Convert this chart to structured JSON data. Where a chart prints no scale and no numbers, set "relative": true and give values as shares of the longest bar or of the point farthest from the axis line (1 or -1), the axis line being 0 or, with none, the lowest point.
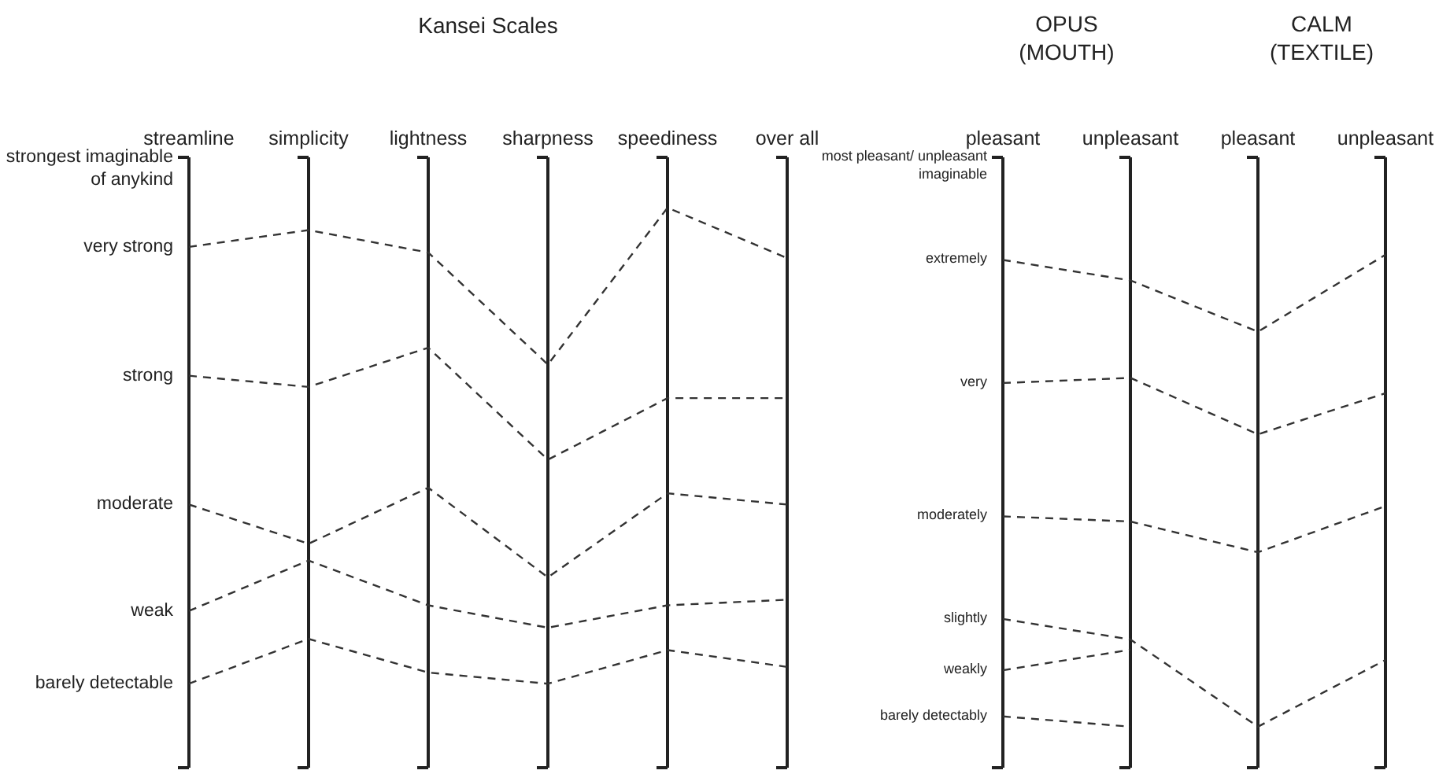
{
  "chart_data": [
    {
      "type": "line",
      "title": "Kansei Scales",
      "categories": [
        "streamline",
        "simplicity",
        "lightness",
        "sharpness",
        "speediness",
        "over all"
      ],
      "relative": true,
      "grid": "x",
      "annotations": [
        "strongest imaginable of anykind",
        "very strong",
        "strong",
        "moderate",
        "weak",
        "barely detectable"
      ],
      "line_style": "dashed",
      "series": [
        {
          "color": "#333333",
          "values": [
            0.93,
            0.96,
            0.92,
            0.72,
            1,
            0.91
          ]
        },
        {
          "color": "#333333",
          "values": [
            0.7,
            0.68,
            0.75,
            0.55,
            0.66,
            0.66
          ]
        },
        {
          "color": "#333333",
          "values": [
            0.47,
            0.4,
            0.5,
            0.34,
            0.49,
            0.47
          ]
        },
        {
          "color": "#333333",
          "values": [
            0.28,
            0.37,
            0.29,
            0.25,
            0.29,
            0.3
          ]
        },
        {
          "color": "#333333",
          "values": [
            0.15,
            0.23,
            0.17,
            0.15,
            0.21,
            0.18
          ]
        }
      ]
    },
    {
      "type": "line",
      "categories": [
        "pleasant",
        "unpleasant",
        "pleasant",
        "unpleasant"
      ],
      "relative": true,
      "grid": "x",
      "annotations": [
        "OPUS (MOUTH)",
        "CALM (TEXTILE)",
        "most pleasant/ unpleasant imaginable",
        "extremely",
        "very",
        "moderately",
        "slightly",
        "weakly",
        "barely detectably"
      ],
      "line_style": "dashed",
      "series": [
        {
          "color": "#333333",
          "values": [
            0.99,
            0.95,
            0.85,
            1
          ]
        },
        {
          "color": "#333333",
          "values": [
            0.75,
            0.76,
            0.65,
            0.73
          ]
        },
        {
          "color": "#333333",
          "values": [
            0.49,
            0.48,
            0.42,
            0.51
          ]
        },
        {
          "color": "#333333",
          "values": [
            0.29,
            0.25,
            0.08,
            0.21
          ]
        },
        {
          "color": "#333333",
          "values": [
            0.19,
            0.23,
            null,
            null
          ]
        },
        {
          "color": "#333333",
          "values": [
            0.1,
            0.08,
            null,
            null
          ]
        }
      ]
    }
  ]
}
